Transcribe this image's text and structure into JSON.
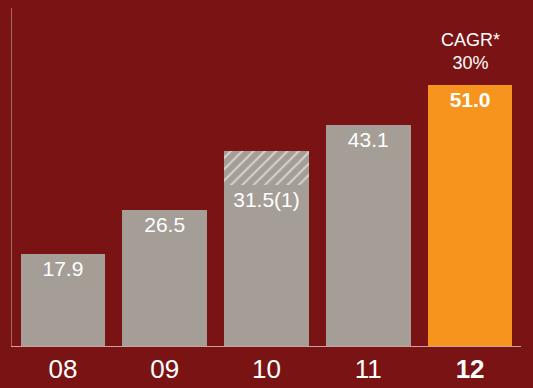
{
  "chart_data": {
    "type": "bar",
    "categories": [
      "08",
      "09",
      "10",
      "11",
      "12"
    ],
    "stacked": true,
    "data_labels": true,
    "tick_labels": "x",
    "grid": false,
    "ylim": [
      0,
      66
    ],
    "yticks": [],
    "series": [
      {
        "values": [
          17.9,
          26.5,
          31.5,
          43.1,
          51.0
        ],
        "value_labels": [
          "17.9",
          "26.5",
          "31.5(1)",
          "43.1",
          "51.0"
        ],
        "colors": [
          "#a59e97",
          "#a59e97",
          "#a59e97",
          "#a59e97",
          "#f7941e"
        ]
      },
      {
        "values": [
          null,
          null,
          6.5,
          null,
          null
        ],
        "color": "#a59e97",
        "marker": "hatched"
      }
    ],
    "annotation": {
      "category": "12",
      "lines": [
        "CAGR*",
        "30%"
      ]
    }
  }
}
